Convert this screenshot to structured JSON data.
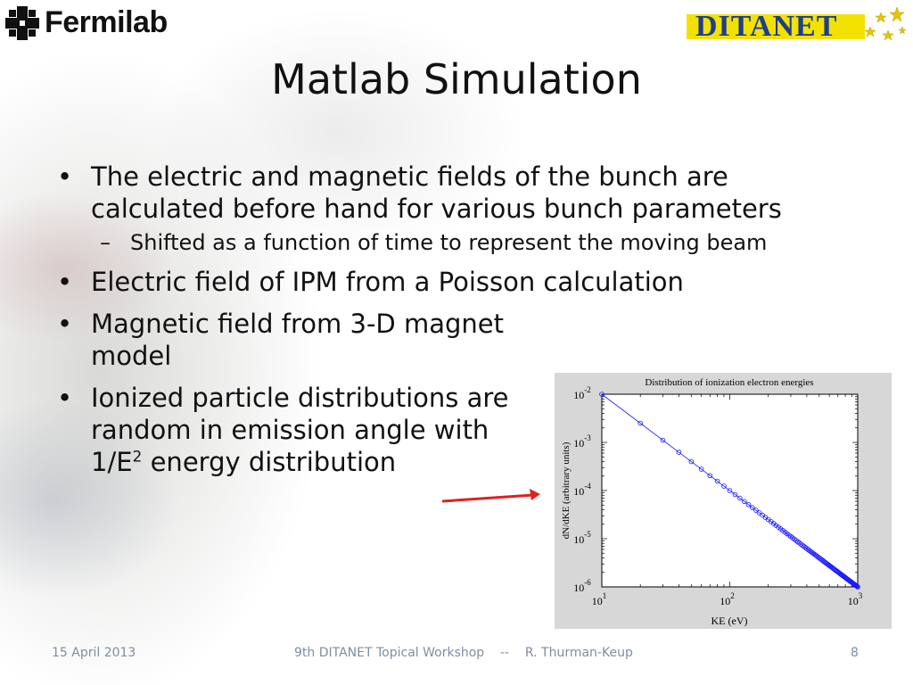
{
  "header": {
    "fermilab_logo_text": "Fermilab",
    "ditanet_logo_text": "DITANET"
  },
  "slide": {
    "title": "Matlab Simulation",
    "bullets": [
      "The electric and magnetic fields of the bunch are calculated before hand for various bunch parameters",
      "Electric field of IPM from a Poisson calculation",
      "Magnetic field from 3-D magnet model"
    ],
    "sub_bullet": "Shifted as a function of time to represent the moving beam",
    "bullet_dist_line1": "Ionized particle distributions are",
    "bullet_dist_line2": "random in emission angle with",
    "bullet_dist_line3_pre": "1/E",
    "bullet_dist_sup": "2",
    "bullet_dist_line3_post": " energy distribution",
    "bullet_symbol": "•",
    "dash_symbol": "–"
  },
  "chart_data": {
    "type": "scatter",
    "title": "Distribution of ionization electron energies",
    "xlabel": "KE  (eV)",
    "ylabel": "dN/dKE   (arbitrary units)",
    "x_scale": "log",
    "y_scale": "log",
    "xlim": [
      10,
      1000
    ],
    "ylim": [
      1e-06,
      0.01
    ],
    "x_ticks": [
      {
        "value": 10,
        "base": "10",
        "exp": "1"
      },
      {
        "value": 100,
        "base": "10",
        "exp": "2"
      },
      {
        "value": 1000,
        "base": "10",
        "exp": "3"
      }
    ],
    "y_ticks": [
      {
        "value": 0.01,
        "base": "10",
        "exp": "-2"
      },
      {
        "value": 0.001,
        "base": "10",
        "exp": "-3"
      },
      {
        "value": 0.0001,
        "base": "10",
        "exp": "-4"
      },
      {
        "value": 1e-05,
        "base": "10",
        "exp": "-5"
      },
      {
        "value": 1e-06,
        "base": "10",
        "exp": "-6"
      }
    ],
    "relation": "dN/dKE = KE^-2",
    "x": [
      10,
      20,
      30,
      40,
      50,
      60,
      70,
      80,
      90,
      100,
      110,
      120,
      130,
      140,
      150,
      160,
      170,
      180,
      190,
      200,
      210,
      220,
      230,
      240,
      250,
      260,
      270,
      280,
      290,
      300,
      310,
      320,
      330,
      340,
      350,
      360,
      370,
      380,
      390,
      400,
      410,
      420,
      430,
      440,
      450,
      460,
      470,
      480,
      490,
      500,
      510,
      520,
      530,
      540,
      550,
      560,
      570,
      580,
      590,
      600,
      610,
      620,
      630,
      640,
      650,
      660,
      670,
      680,
      690,
      700,
      710,
      720,
      730,
      740,
      750,
      760,
      770,
      780,
      790,
      800,
      810,
      820,
      830,
      840,
      850,
      860,
      870,
      880,
      890,
      900,
      910,
      920,
      930,
      940,
      950,
      960,
      970,
      980,
      990,
      1000
    ],
    "marker": "circle",
    "color": "#1a1aff",
    "grid": false
  },
  "footer": {
    "date": "15 April 2013",
    "event": "9th DITANET Topical Workshop    --    R. Thurman-Keup",
    "page": "8"
  },
  "colors": {
    "arrow": "#e02020",
    "footer_text": "#7f8ea0",
    "ditanet_blue": "#1f3e8c",
    "ditanet_yellow": "#f3e200"
  }
}
